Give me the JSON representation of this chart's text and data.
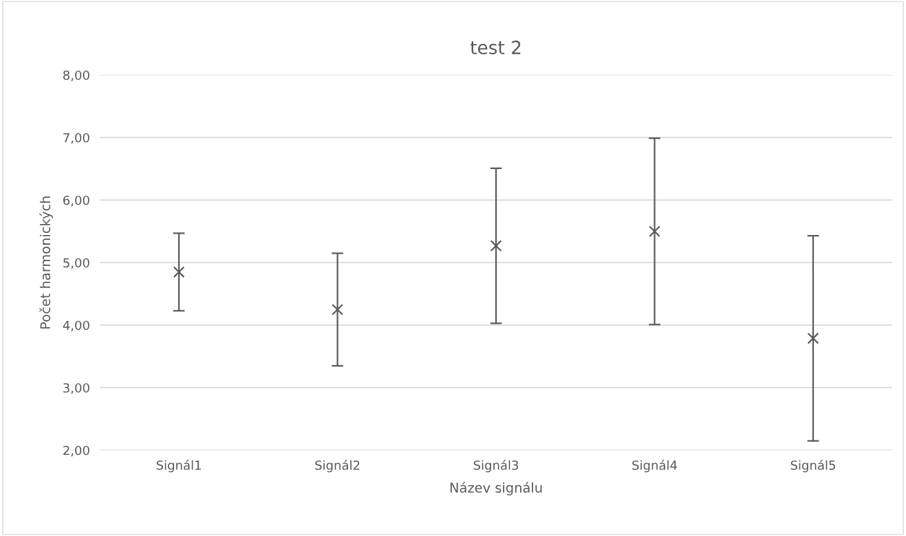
{
  "chart_data": {
    "type": "scatter",
    "title": "test 2",
    "xlabel": "Název signálu",
    "ylabel": "Počet harmonických",
    "categories": [
      "Signál1",
      "Signál2",
      "Signál3",
      "Signál4",
      "Signál5"
    ],
    "values": [
      4.85,
      4.25,
      5.27,
      5.5,
      3.79
    ],
    "errors": [
      0.62,
      0.9,
      1.24,
      1.49,
      1.64
    ],
    "color": "#595959",
    "marker": "cross",
    "ylim": [
      2,
      8
    ],
    "yticks": [
      {
        "value": 2,
        "label": "2,00"
      },
      {
        "value": 3,
        "label": "3,00"
      },
      {
        "value": 4,
        "label": "4,00"
      },
      {
        "value": 5,
        "label": "5,00"
      },
      {
        "value": 6,
        "label": "6,00"
      },
      {
        "value": 7,
        "label": "7,00"
      },
      {
        "value": 8,
        "label": "8,00"
      }
    ],
    "grid": "y"
  }
}
